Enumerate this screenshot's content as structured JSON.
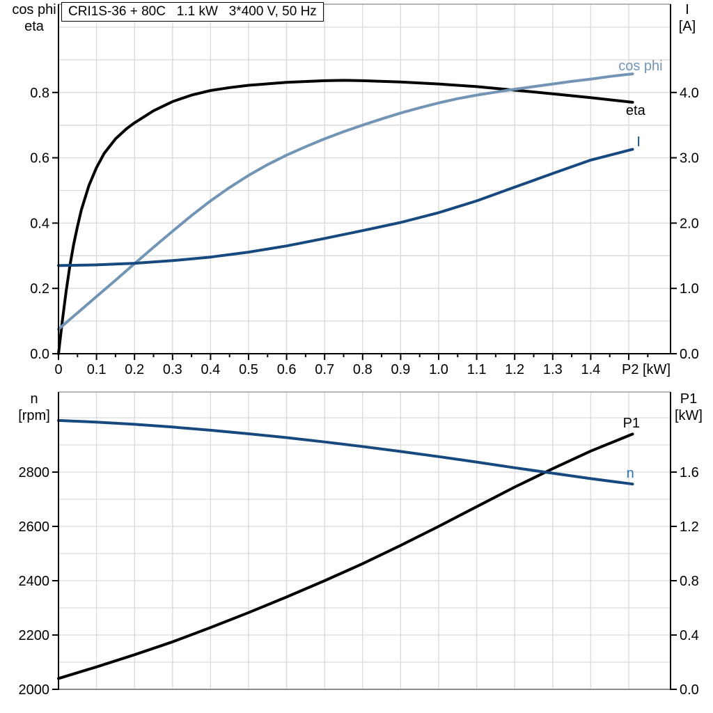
{
  "title": "CRI1S-36 + 80C   1.1 kW   3*400 V, 50 Hz",
  "headers": {
    "top_left": [
      "cos phi",
      "eta"
    ],
    "top_right": [
      "I",
      "[A]"
    ],
    "bottom_left": [
      "n",
      "[rpm]"
    ],
    "bottom_right": [
      "P1",
      "[kW]"
    ]
  },
  "colors": {
    "black": "#000000",
    "light_blue": "#7295B5",
    "dark_blue": "#17497E",
    "n_label": "#2E75B6",
    "grid": "#D9D9D9",
    "frame": "#8C8C8C",
    "text": "#000000"
  },
  "chart_data": [
    {
      "type": "line",
      "panel": "top",
      "title": "CRI1S-36 + 80C 1.1 kW 3*400 V, 50 Hz",
      "xlabel": "P2 [kW]",
      "grid": true,
      "x_axis": {
        "min": 0,
        "max": 1.61,
        "minor_tick_step": 0.05,
        "ticks": [
          [
            0,
            "0"
          ],
          [
            0.1,
            "0.1"
          ],
          [
            0.2,
            "0.2"
          ],
          [
            0.3,
            "0.3"
          ],
          [
            0.4,
            "0.4"
          ],
          [
            0.5,
            "0.5"
          ],
          [
            0.6,
            "0.6"
          ],
          [
            0.7,
            "0.7"
          ],
          [
            0.8,
            "0.8"
          ],
          [
            0.9,
            "0.9"
          ],
          [
            1.0,
            "1.0"
          ],
          [
            1.1,
            "1.1"
          ],
          [
            1.2,
            "1.2"
          ],
          [
            1.3,
            "1.3"
          ],
          [
            1.4,
            "1.4"
          ]
        ]
      },
      "left_axis": {
        "label": "cos phi / eta",
        "min": 0,
        "max": 1.07,
        "ticks": [
          [
            0,
            "0.0"
          ],
          [
            0.2,
            "0.2"
          ],
          [
            0.4,
            "0.4"
          ],
          [
            0.6,
            "0.6"
          ],
          [
            0.8,
            "0.8"
          ]
        ]
      },
      "right_axis": {
        "label": "I [A]",
        "min": 0,
        "max": 5.35,
        "ticks": [
          [
            0,
            "0.0"
          ],
          [
            1,
            "1.0"
          ],
          [
            2,
            "2.0"
          ],
          [
            3,
            "3.0"
          ],
          [
            4,
            "4.0"
          ]
        ]
      },
      "series": [
        {
          "name": "eta",
          "axis": "left",
          "color_key": "black",
          "label_color_key": "black",
          "label_at": [
            1.518,
            0.746
          ],
          "points": [
            [
              0,
              0
            ],
            [
              0.01,
              0.1
            ],
            [
              0.02,
              0.19
            ],
            [
              0.03,
              0.27
            ],
            [
              0.04,
              0.335
            ],
            [
              0.05,
              0.39
            ],
            [
              0.06,
              0.44
            ],
            [
              0.08,
              0.515
            ],
            [
              0.1,
              0.57
            ],
            [
              0.12,
              0.613
            ],
            [
              0.15,
              0.658
            ],
            [
              0.18,
              0.69
            ],
            [
              0.2,
              0.707
            ],
            [
              0.25,
              0.744
            ],
            [
              0.3,
              0.772
            ],
            [
              0.35,
              0.792
            ],
            [
              0.4,
              0.806
            ],
            [
              0.45,
              0.815
            ],
            [
              0.5,
              0.822
            ],
            [
              0.6,
              0.831
            ],
            [
              0.7,
              0.836
            ],
            [
              0.75,
              0.837
            ],
            [
              0.8,
              0.836
            ],
            [
              0.9,
              0.832
            ],
            [
              1.0,
              0.826
            ],
            [
              1.1,
              0.818
            ],
            [
              1.2,
              0.807
            ],
            [
              1.3,
              0.796
            ],
            [
              1.4,
              0.784
            ],
            [
              1.51,
              0.77
            ]
          ]
        },
        {
          "name": "cos phi",
          "axis": "left",
          "color_key": "light_blue",
          "label_color_key": "light_blue",
          "label_at": [
            1.531,
            0.883
          ],
          "points": [
            [
              0,
              0.075
            ],
            [
              0.05,
              0.125
            ],
            [
              0.1,
              0.175
            ],
            [
              0.15,
              0.225
            ],
            [
              0.2,
              0.276
            ],
            [
              0.25,
              0.326
            ],
            [
              0.3,
              0.375
            ],
            [
              0.35,
              0.423
            ],
            [
              0.4,
              0.468
            ],
            [
              0.45,
              0.509
            ],
            [
              0.5,
              0.546
            ],
            [
              0.55,
              0.579
            ],
            [
              0.6,
              0.608
            ],
            [
              0.65,
              0.634
            ],
            [
              0.7,
              0.658
            ],
            [
              0.75,
              0.68
            ],
            [
              0.8,
              0.7
            ],
            [
              0.85,
              0.719
            ],
            [
              0.9,
              0.737
            ],
            [
              0.95,
              0.753
            ],
            [
              1.0,
              0.768
            ],
            [
              1.05,
              0.781
            ],
            [
              1.1,
              0.792
            ],
            [
              1.15,
              0.801
            ],
            [
              1.2,
              0.81
            ],
            [
              1.25,
              0.818
            ],
            [
              1.3,
              0.826
            ],
            [
              1.35,
              0.834
            ],
            [
              1.4,
              0.841
            ],
            [
              1.45,
              0.849
            ],
            [
              1.51,
              0.857
            ]
          ]
        },
        {
          "name": "I",
          "axis": "right",
          "color_key": "dark_blue",
          "label_color_key": "dark_blue",
          "label_at": [
            1.526,
            3.25
          ],
          "points": [
            [
              0,
              1.35
            ],
            [
              0.1,
              1.36
            ],
            [
              0.2,
              1.385
            ],
            [
              0.3,
              1.425
            ],
            [
              0.4,
              1.48
            ],
            [
              0.5,
              1.555
            ],
            [
              0.6,
              1.65
            ],
            [
              0.7,
              1.765
            ],
            [
              0.8,
              1.885
            ],
            [
              0.9,
              2.01
            ],
            [
              1.0,
              2.16
            ],
            [
              1.1,
              2.34
            ],
            [
              1.2,
              2.55
            ],
            [
              1.3,
              2.76
            ],
            [
              1.4,
              2.965
            ],
            [
              1.51,
              3.13
            ]
          ]
        }
      ]
    },
    {
      "type": "line",
      "panel": "bottom",
      "xlabel": "",
      "grid": true,
      "x_axis": {
        "min": 0,
        "max": 1.61,
        "ticks": []
      },
      "left_axis": {
        "label": "n [rpm]",
        "min": 2000,
        "max": 3095,
        "ticks": [
          [
            2000,
            "2000"
          ],
          [
            2200,
            "2200"
          ],
          [
            2400,
            "2400"
          ],
          [
            2600,
            "2600"
          ],
          [
            2800,
            "2800"
          ]
        ]
      },
      "right_axis": {
        "label": "P1 [kW]",
        "min": 0,
        "max": 2.19,
        "ticks": [
          [
            0,
            "0.0"
          ],
          [
            0.4,
            "0.4"
          ],
          [
            0.8,
            "0.8"
          ],
          [
            1.2,
            "1.2"
          ],
          [
            1.6,
            "1.6"
          ]
        ]
      },
      "series": [
        {
          "name": "P1",
          "axis": "right",
          "color_key": "black",
          "label_color_key": "black",
          "label_at": [
            1.507,
            1.964
          ],
          "points": [
            [
              0,
              0.08
            ],
            [
              0.1,
              0.165
            ],
            [
              0.2,
              0.255
            ],
            [
              0.3,
              0.35
            ],
            [
              0.4,
              0.455
            ],
            [
              0.5,
              0.565
            ],
            [
              0.6,
              0.68
            ],
            [
              0.7,
              0.8
            ],
            [
              0.8,
              0.925
            ],
            [
              0.9,
              1.06
            ],
            [
              1.0,
              1.2
            ],
            [
              1.1,
              1.345
            ],
            [
              1.2,
              1.49
            ],
            [
              1.3,
              1.625
            ],
            [
              1.4,
              1.755
            ],
            [
              1.51,
              1.88
            ]
          ]
        },
        {
          "name": "n",
          "axis": "left",
          "color_key": "dark_blue",
          "label_color_key": "n_label",
          "label_at": [
            1.504,
            2797
          ],
          "points": [
            [
              0,
              2990
            ],
            [
              0.1,
              2984
            ],
            [
              0.2,
              2976
            ],
            [
              0.3,
              2966
            ],
            [
              0.4,
              2954
            ],
            [
              0.5,
              2941
            ],
            [
              0.6,
              2927
            ],
            [
              0.7,
              2911
            ],
            [
              0.8,
              2894
            ],
            [
              0.9,
              2876
            ],
            [
              1.0,
              2857
            ],
            [
              1.1,
              2837
            ],
            [
              1.2,
              2816
            ],
            [
              1.3,
              2796
            ],
            [
              1.4,
              2776
            ],
            [
              1.51,
              2756
            ]
          ]
        }
      ]
    }
  ]
}
